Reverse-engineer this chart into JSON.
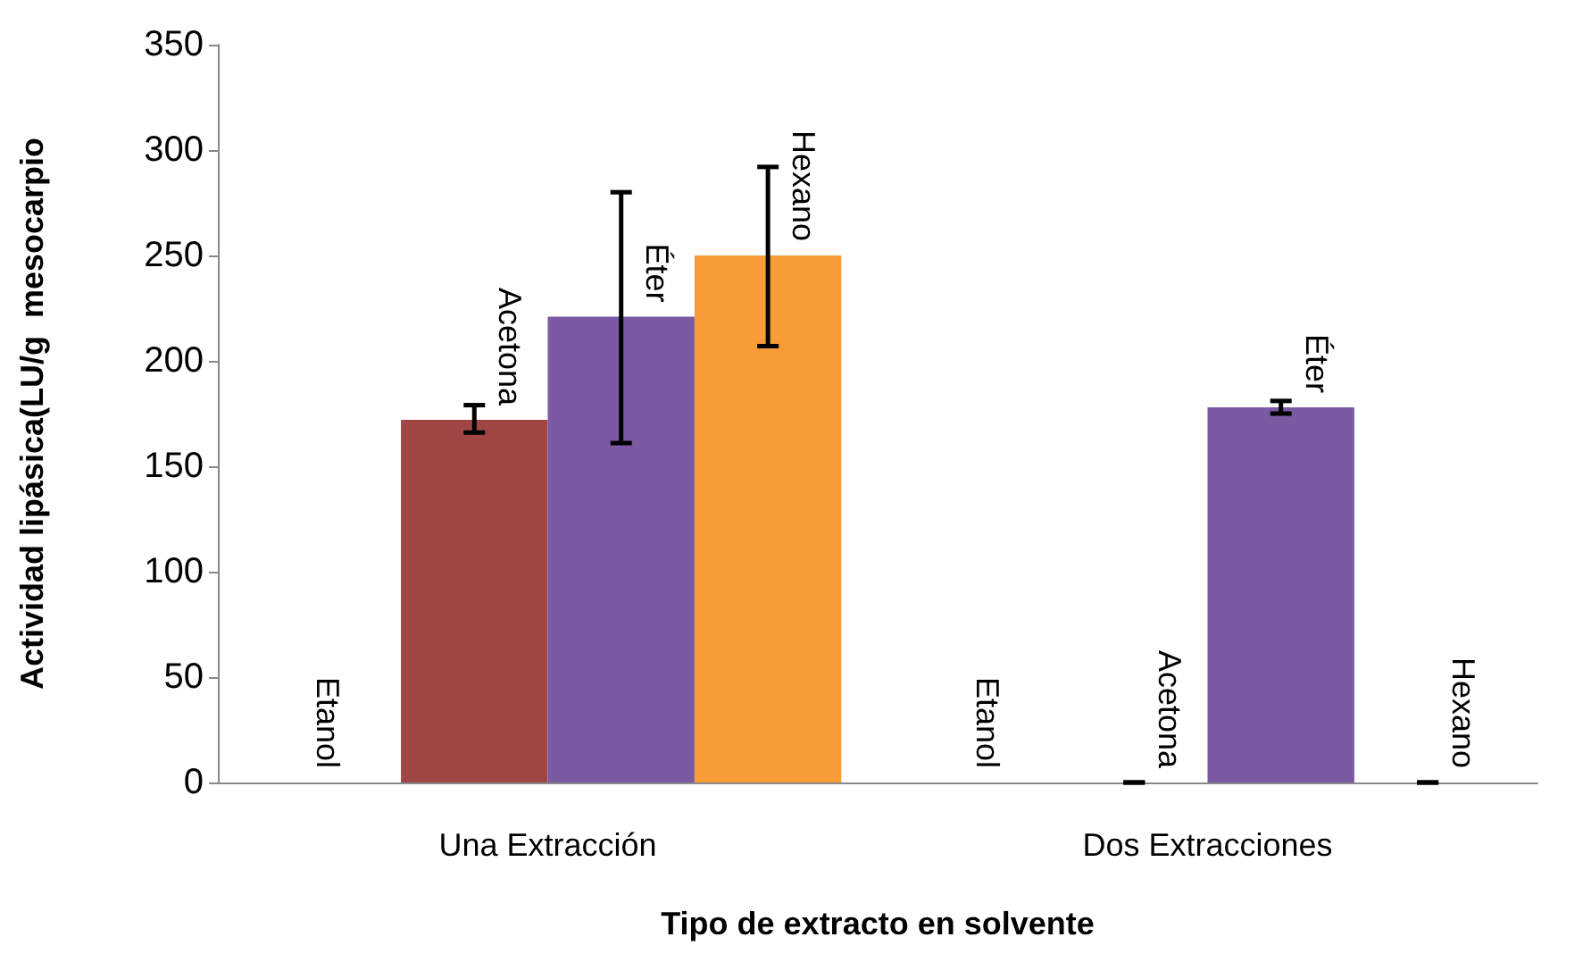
{
  "chart_data": {
    "type": "bar",
    "xlabel": "Tipo de extracto en solvente",
    "ylabel": "Actividad lipásica(LU/g  mesocarpio",
    "categories": [
      "Una Extracción",
      "Dos Extracciones"
    ],
    "series": [
      {
        "name": "Etanol",
        "values": [
          0,
          0
        ]
      },
      {
        "name": "Acetona",
        "color": "#a04745",
        "values": [
          172,
          0
        ],
        "errors": [
          [
            166,
            179
          ],
          0
        ]
      },
      {
        "name": "Éter",
        "color": "#7b5aa3",
        "values": [
          221,
          178
        ],
        "errors": [
          [
            161,
            280
          ],
          [
            175,
            181
          ]
        ]
      },
      {
        "name": "Hexano",
        "color": "#f89c38",
        "values": [
          250,
          0
        ],
        "errors": [
          [
            207,
            292
          ],
          0
        ]
      }
    ],
    "ylim": [
      0,
      350
    ],
    "yticks": [
      0,
      50,
      100,
      150,
      200,
      250,
      300,
      350
    ],
    "grid": false,
    "legend": false
  }
}
